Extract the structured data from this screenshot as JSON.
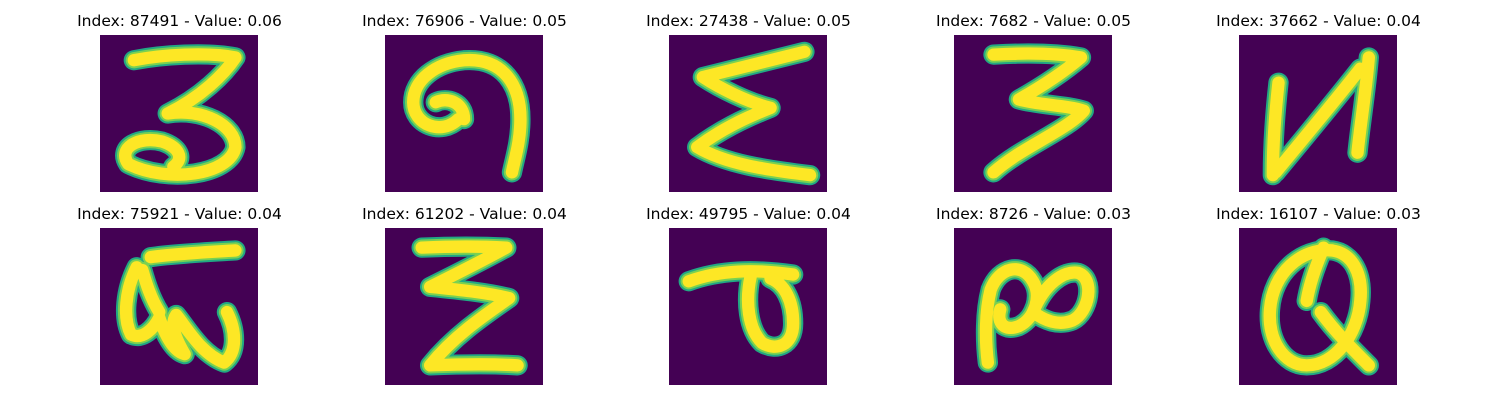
{
  "colors": {
    "background": "#440154",
    "stroke_outer": "#22a884",
    "stroke_mid": "#7ad151",
    "stroke_core": "#fde725"
  },
  "panels": [
    {
      "title": "Index: 87491 - Value: 0.06",
      "glyph": "three-shaped-character"
    },
    {
      "title": "Index: 76906 - Value: 0.05",
      "glyph": "hook-shaped-character"
    },
    {
      "title": "Index: 27438 - Value: 0.05",
      "glyph": "sigma-shaped-character"
    },
    {
      "title": "Index: 7682 - Value: 0.05",
      "glyph": "three-shaped-character"
    },
    {
      "title": "Index: 37662 - Value: 0.04",
      "glyph": "n-shaped-character"
    },
    {
      "title": "Index: 75921 - Value: 0.04",
      "glyph": "loop-shaped-character"
    },
    {
      "title": "Index: 61202 - Value: 0.04",
      "glyph": "zigzag-character"
    },
    {
      "title": "Index: 49795 - Value: 0.04",
      "glyph": "loop-shaped-character"
    },
    {
      "title": "Index: 8726 - Value: 0.03",
      "glyph": "infinity-shaped-character"
    },
    {
      "title": "Index: 16107 - Value: 0.03",
      "glyph": "q-shaped-character"
    }
  ]
}
